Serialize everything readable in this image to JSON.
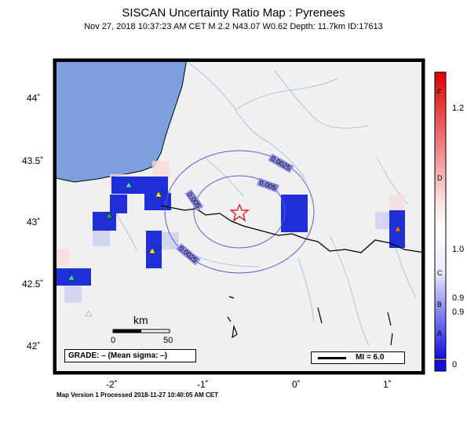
{
  "header": {
    "title": "SISCAN Uncertainty Ratio Map : Pyrenees",
    "subtitle": "Nov 27, 2018 10:37:23 AM CET   M 2.2   N43.07 W0.62   Depth: 11.7km   ID:17613"
  },
  "map": {
    "lat_ticks": [
      "44˚",
      "43.5˚",
      "43˚",
      "42.5˚",
      "42˚"
    ],
    "lon_ticks": [
      "-2˚",
      "-1˚",
      "0˚",
      "1˚"
    ],
    "contour_labels": [
      "0.0025",
      "0.005",
      "0.005",
      "0.0025"
    ],
    "scale_bar": {
      "unit": "km",
      "ticks": [
        "0",
        "50"
      ]
    },
    "grade_box": "GRADE: – (Mean sigma: –)",
    "mi_box": "MI = 6.0",
    "epicenter": {
      "lat": 43.07,
      "lon": -0.62
    }
  },
  "colorbar": {
    "letters": [
      "F",
      "D",
      "C",
      "B",
      "A"
    ],
    "values": [
      "1.2",
      "1.0",
      "0.9",
      "0.9",
      "0"
    ]
  },
  "footer": "Map Version 1 Processed 2018-11-27 10:40:05 AM CET",
  "colors": {
    "sea": "#7ba0dc",
    "land": "#f0f0f0",
    "dark_blue": "#1f2fd8",
    "star": "#e02020"
  }
}
